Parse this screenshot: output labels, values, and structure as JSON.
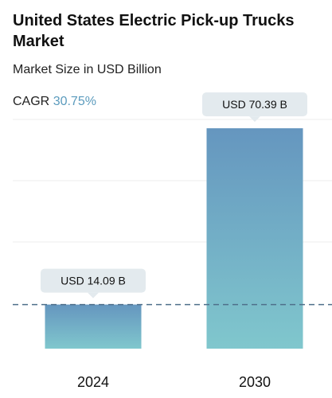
{
  "chart_data": {
    "type": "bar",
    "title": "United States Electric Pick-up Trucks Market",
    "subtitle": "Market Size in USD Billion",
    "cagr_label": "CAGR",
    "cagr": "30.75%",
    "categories": [
      "2024",
      "2030"
    ],
    "values": [
      14.09,
      70.39
    ],
    "value_labels": [
      "USD 14.09 B",
      "USD 70.39 B"
    ],
    "gradient": [
      "#6596bf",
      "#80c7cd"
    ],
    "ylim": [
      0,
      75
    ],
    "reference_line": true
  }
}
